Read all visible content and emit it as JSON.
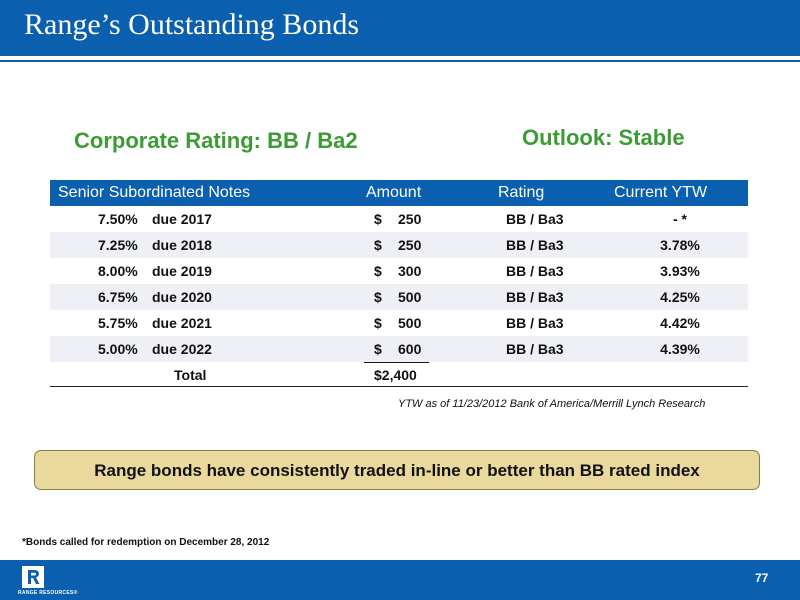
{
  "header": {
    "title": "Range’s Outstanding Bonds"
  },
  "summary": {
    "corporate_rating": "Corporate Rating: BB / Ba2",
    "outlook": "Outlook: Stable"
  },
  "table": {
    "columns": [
      "Senior Subordinated Notes",
      "Amount",
      "Rating",
      "Current YTW"
    ],
    "rows": [
      {
        "rate": "7.50%",
        "due": "due 2017",
        "dollar": "$",
        "amount": "250",
        "rating": "BB / Ba3",
        "ytw": "- *"
      },
      {
        "rate": "7.25%",
        "due": "due 2018",
        "dollar": "$",
        "amount": "250",
        "rating": "BB / Ba3",
        "ytw": "3.78%"
      },
      {
        "rate": "8.00%",
        "due": "due 2019",
        "dollar": "$",
        "amount": "300",
        "rating": "BB / Ba3",
        "ytw": "3.93%"
      },
      {
        "rate": "6.75%",
        "due": "due 2020",
        "dollar": "$",
        "amount": "500",
        "rating": "BB / Ba3",
        "ytw": "4.25%"
      },
      {
        "rate": "5.75%",
        "due": "due 2021",
        "dollar": "$",
        "amount": "500",
        "rating": "BB / Ba3",
        "ytw": "4.42%"
      },
      {
        "rate": "5.00%",
        "due": "due 2022",
        "dollar": "$",
        "amount": "600",
        "rating": "BB / Ba3",
        "ytw": "4.39%"
      }
    ],
    "total": {
      "label": "Total",
      "amount": "$2,400"
    }
  },
  "source_note": "YTW as of 11/23/2012 Bank of America/Merrill Lynch Research",
  "callout": "Range bonds have consistently traded in-line or better than BB rated index",
  "footnote": "*Bonds called for redemption on  December 28, 2012",
  "footer": {
    "logo_text": "RANGE RESOURCES®",
    "page_number": "77"
  },
  "colors": {
    "brand_blue": "#0a5fae",
    "accent_green": "#3d9b35",
    "callout_fill": "#ead99d",
    "row_shade": "#eef0f6"
  }
}
